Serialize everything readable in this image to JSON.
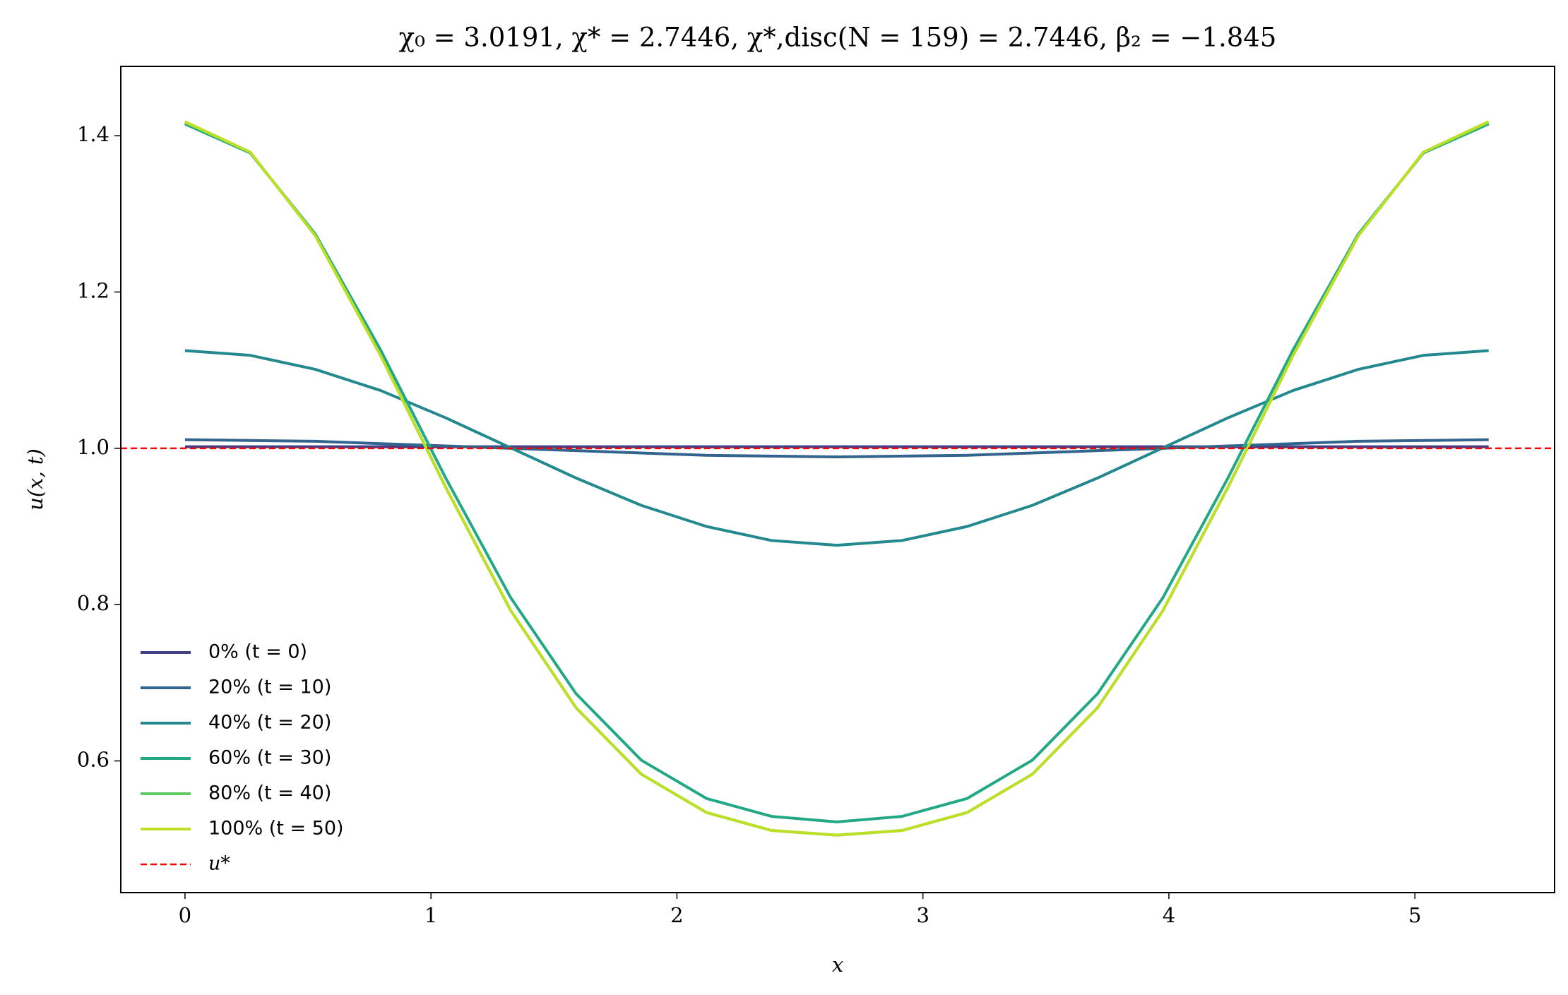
{
  "chart_data": {
    "type": "line",
    "title": "χ₀ = 3.0191,  χ* = 2.7446,  χ*,disc(N = 159) = 2.7446,  β₂ = −1.845",
    "xlabel": "x",
    "ylabel": "u(x, t)",
    "x": [
      0,
      0.265,
      0.53,
      0.795,
      1.06,
      1.325,
      1.59,
      1.855,
      2.12,
      2.385,
      2.65,
      2.915,
      3.18,
      3.445,
      3.71,
      3.975,
      4.24,
      4.505,
      4.77,
      5.035,
      5.3
    ],
    "series": [
      {
        "name": "0% (t = 0)",
        "color": "#433e85",
        "values": [
          1.002,
          1.002,
          1.002,
          1.002,
          1.002,
          1.002,
          1.002,
          1.002,
          1.002,
          1.002,
          1.002,
          1.002,
          1.002,
          1.002,
          1.002,
          1.002,
          1.002,
          1.002,
          1.002,
          1.002,
          1.002
        ]
      },
      {
        "name": "20% (t = 10)",
        "color": "#32648e",
        "values": [
          1.011,
          1.01,
          1.009,
          1.006,
          1.003,
          1.0,
          0.997,
          0.994,
          0.991,
          0.99,
          0.989,
          0.99,
          0.991,
          0.994,
          0.997,
          1.0,
          1.003,
          1.006,
          1.009,
          1.01,
          1.011
        ]
      },
      {
        "name": "40% (t = 20)",
        "color": "#23898e",
        "values": [
          1.125,
          1.119,
          1.101,
          1.074,
          1.039,
          1.0005,
          0.962,
          0.927,
          0.9,
          0.882,
          0.876,
          0.882,
          0.9,
          0.927,
          0.962,
          1.0005,
          1.039,
          1.074,
          1.101,
          1.119,
          1.125
        ]
      },
      {
        "name": "60% (t = 30)",
        "color": "#22a884",
        "values": [
          1.415,
          1.378,
          1.274,
          1.126,
          0.962,
          0.8085,
          0.686,
          0.601,
          0.552,
          0.529,
          0.522,
          0.529,
          0.552,
          0.601,
          0.686,
          0.8085,
          0.962,
          1.126,
          1.274,
          1.378,
          1.415
        ]
      },
      {
        "name": "80% (t = 40)",
        "color": "#5ec962",
        "values": [
          1.417,
          1.379,
          1.272,
          1.119,
          0.95,
          0.792,
          0.668,
          0.583,
          0.534,
          0.511,
          0.505,
          0.511,
          0.534,
          0.583,
          0.668,
          0.792,
          0.95,
          1.119,
          1.272,
          1.379,
          1.417
        ]
      },
      {
        "name": "100% (t = 50)",
        "color": "#bddf26",
        "values": [
          1.418,
          1.379,
          1.272,
          1.119,
          0.95,
          0.792,
          0.668,
          0.583,
          0.534,
          0.511,
          0.505,
          0.511,
          0.534,
          0.583,
          0.668,
          0.792,
          0.95,
          1.119,
          1.272,
          1.379,
          1.418
        ]
      }
    ],
    "reference_line": {
      "name": "u*",
      "value": 1,
      "color": "#ff0000",
      "style": "dashed"
    },
    "xlim": [
      -0.261,
      5.568
    ],
    "ylim": [
      0.4315,
      1.4887
    ],
    "xticks": [
      0,
      1,
      2,
      3,
      4,
      5
    ],
    "yticks": [
      0.6,
      0.8,
      {
        "value": 1,
        "label": "1.0"
      },
      1.2,
      1.4
    ],
    "grid": false,
    "legend": "lower left"
  }
}
